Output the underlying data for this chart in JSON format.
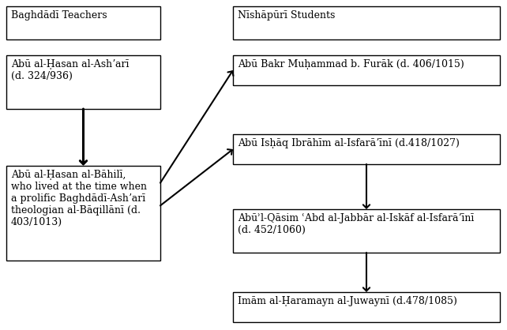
{
  "bg_color": "#ffffff",
  "box_edge_color": "#000000",
  "arrow_color": "#000000",
  "font_color": "#000000",
  "header_left": "Baghdādī Teachers",
  "header_right": "Nīshāpūrī Students",
  "box_left_top": "Abū al-Ḥasan al-Ashʼarī\n(d. 324/936)",
  "box_left_bottom": "Abū al-Ḥasan al-Bāhilī,\nwho lived at the time when\na prolific Baghdādī-Ashʼarī\ntheologian al-Bāqillānī (d.\n403/1013)",
  "box_right_1": "Abū Bakr Muḥammad b. Furāk (d. 406/1015)",
  "box_right_2": "Abū Isḥāq Ibrāhīm al-Isfarāʼīnī (d.418/1027)",
  "box_right_3": "Abūʾl-Qāsim ʿAbd al-Jabbār al-Iskāf al-Isfarāʼīnī\n(d. 452/1060)",
  "box_right_4": "Imām al-Ḥaramayn al-Juwaynī (d.478/1085)"
}
